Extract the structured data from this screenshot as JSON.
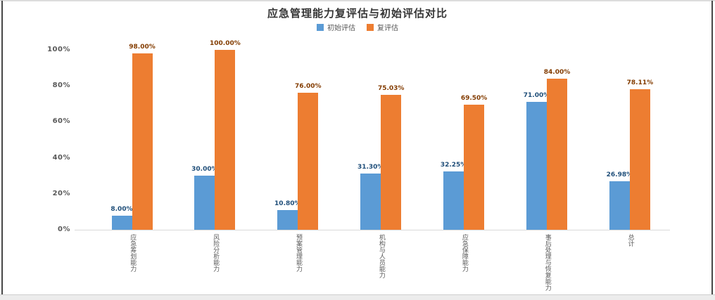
{
  "window": {
    "background": "#ffffff",
    "frame_border_color": "#474747",
    "bottom_bar_color": "#ececec"
  },
  "chart_data": {
    "type": "bar",
    "title": "应急管理能力复评估与初始评估对比",
    "title_color": "#353535",
    "categories": [
      "应急筹划能力",
      "风险分析能力",
      "预案管理能力",
      "机构与人员能力",
      "应急保障能力",
      "事后处理与恢复能力",
      "总计"
    ],
    "series": [
      {
        "name": "初始评估",
        "color": "#5B9BD5",
        "label_color": "#1F4E79",
        "values": [
          8,
          30,
          10.8,
          31.3,
          32.25,
          71,
          26.98
        ],
        "labels": [
          "8.00%",
          "30.00%",
          "10.80%",
          "31.30%",
          "32.25%",
          "71.00%",
          "26.98%"
        ]
      },
      {
        "name": "复评估",
        "color": "#ED7D31",
        "label_color": "#833C00",
        "values": [
          98,
          100,
          76,
          75.03,
          69.5,
          84,
          78.11
        ],
        "labels": [
          "98.00%",
          "100.00%",
          "76.00%",
          "75.03%",
          "69.50%",
          "84.00%",
          "78.11%"
        ]
      }
    ],
    "yticks": [
      "0%",
      "20%",
      "40%",
      "60%",
      "80%",
      "100%"
    ],
    "ytick_values": [
      0,
      20,
      40,
      60,
      80,
      100
    ],
    "ylim": [
      0,
      100
    ],
    "xlabel": "",
    "ylabel": "",
    "legend_position": "top",
    "grid": false,
    "axis_color": "#d9d9d9",
    "tick_label_color": "#595959"
  }
}
